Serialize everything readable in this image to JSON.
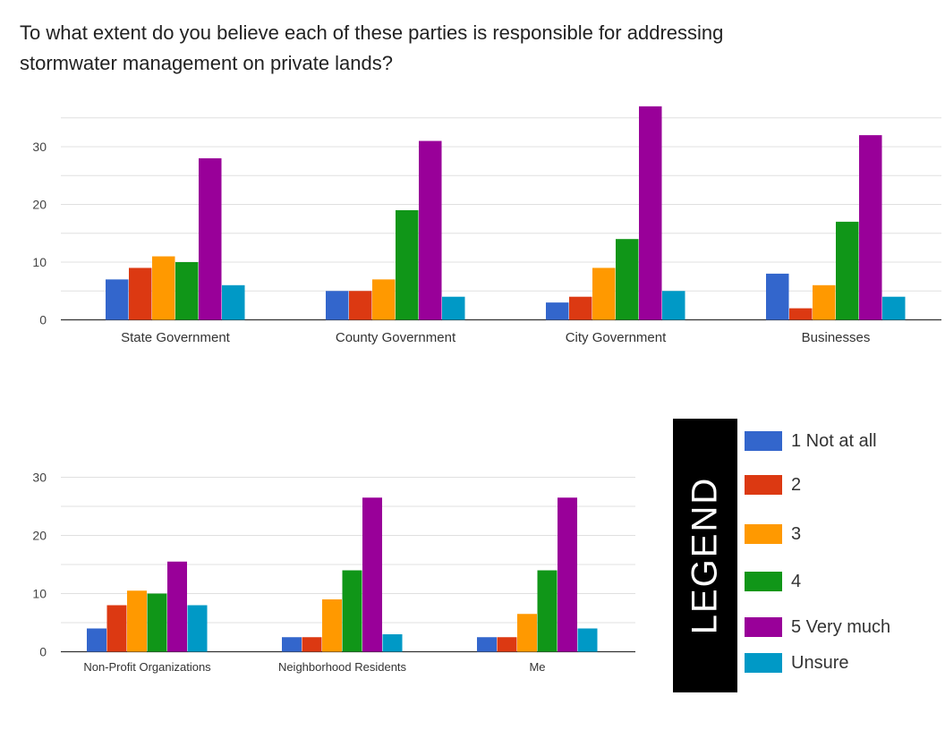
{
  "question": {
    "line1": "To what extent do you believe each of these parties is responsible for addressing",
    "line2": "stormwater management on private lands?"
  },
  "legend": {
    "title": "LEGEND",
    "items": [
      {
        "label": "1 Not at all",
        "color": "#3366cc"
      },
      {
        "label": "2",
        "color": "#dc3912"
      },
      {
        "label": "3",
        "color": "#ff9900"
      },
      {
        "label": "4",
        "color": "#109618"
      },
      {
        "label": "5 Very much",
        "color": "#990099"
      },
      {
        "label": "Unsure",
        "color": "#0099c6"
      }
    ]
  },
  "chart_data": [
    {
      "type": "bar",
      "categories": [
        "State Government",
        "County Government",
        "City Government",
        "Businesses"
      ],
      "yticks": [
        0,
        10,
        20,
        30
      ],
      "ylim": [
        0,
        36
      ],
      "series": [
        {
          "name": "1 Not at all",
          "values": [
            7,
            5,
            3,
            8
          ]
        },
        {
          "name": "2",
          "values": [
            9,
            5,
            4,
            2
          ]
        },
        {
          "name": "3",
          "values": [
            11,
            7,
            9,
            6
          ]
        },
        {
          "name": "4",
          "values": [
            10,
            19,
            14,
            17
          ]
        },
        {
          "name": "5 Very much",
          "values": [
            28,
            31,
            37,
            32
          ]
        },
        {
          "name": "Unsure",
          "values": [
            6,
            4,
            5,
            4
          ]
        }
      ],
      "grid": true
    },
    {
      "type": "bar",
      "categories": [
        "Non-Profit Organizations",
        "Neighborhood Residents",
        "Me"
      ],
      "yticks": [
        0,
        10,
        20,
        30
      ],
      "ylim": [
        0,
        33
      ],
      "series": [
        {
          "name": "1 Not at all",
          "values": [
            4,
            2.5,
            2.5
          ]
        },
        {
          "name": "2",
          "values": [
            8,
            2.5,
            2.5
          ]
        },
        {
          "name": "3",
          "values": [
            10.5,
            9,
            6.5
          ]
        },
        {
          "name": "4",
          "values": [
            10,
            14,
            14
          ]
        },
        {
          "name": "5 Very much",
          "values": [
            15.5,
            26.5,
            26.5
          ]
        },
        {
          "name": "Unsure",
          "values": [
            8,
            3,
            4
          ]
        }
      ],
      "grid": true
    }
  ]
}
